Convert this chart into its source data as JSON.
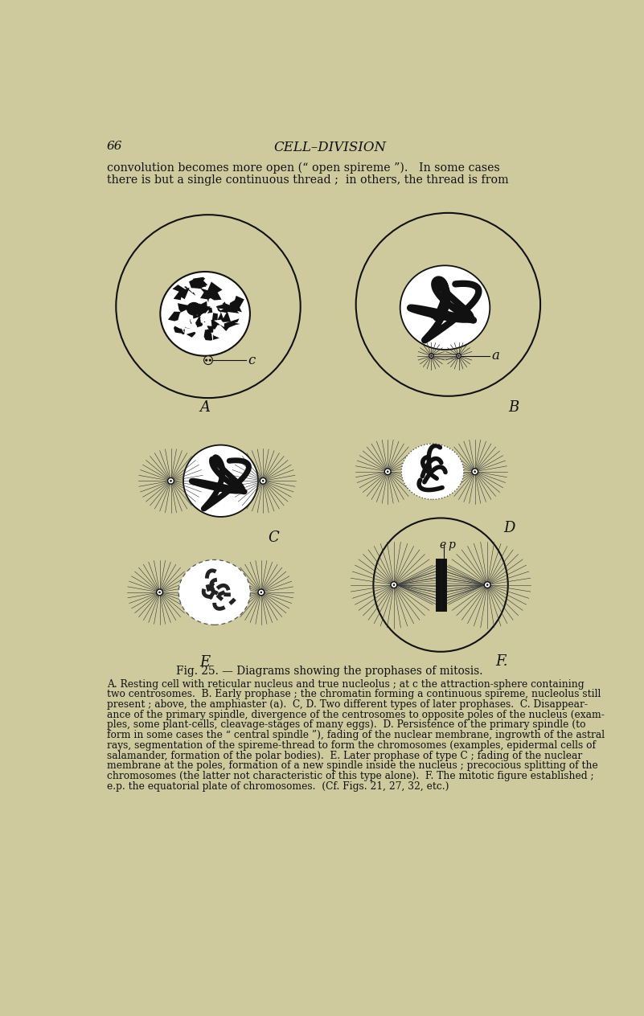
{
  "bg_color": "#ceca9e",
  "page_number": "66",
  "header_title": "CELL–DIVISION",
  "text_line1": "convolution becomes more open (“ open spireme ”).   In some cases",
  "text_line2": "there is but a single continuous thread ;  in others, the thread is from",
  "fig_caption": "Fig. 25. — Diagrams showing the prophases of mitosis.",
  "caption_lines": [
    "A. Resting cell with reticular nucleus and true nucleolus ; at c the attraction-sphere containing",
    "two centrosomes.  B. Early prophase ; the chromatin forming a continuous spireme, nucleolus still",
    "present ; above, the amphiaster (a).  C, D. Two different types of later prophases.  C. Disappear-",
    "ance of the primary spindle, divergence of the centrosomes to opposite poles of the nucleus (exam-",
    "ples, some plant-cells, cleavage-stages of many eggs).  D. Persistence of the primary spindle (to",
    "form in some cases the “ central spindle ”), fading of the nuclear membrane, ingrowth of the astral",
    "rays, segmentation of the spireme-thread to form the chromosomes (examples, epidermal cells of",
    "salamander, formation of the polar bodies).  E. Later prophase of type C ; fading of the nuclear",
    "membrane at the poles, formation of a new spindle inside the nucleus ; precocious splitting of the",
    "chromosomes (the latter not characteristic of this type alone).  F. The mitotic figure established ;",
    "e.p. the equatorial plate of chromosomes.  (Cf. Figs. 21, 27, 32, etc.)"
  ],
  "label_A": "A",
  "label_B": "B",
  "label_C": "C",
  "label_D": "D",
  "label_E": "E",
  "label_F": "F.",
  "label_c": "c",
  "label_a": "a",
  "label_ep": "e p",
  "text_color": "#111111"
}
